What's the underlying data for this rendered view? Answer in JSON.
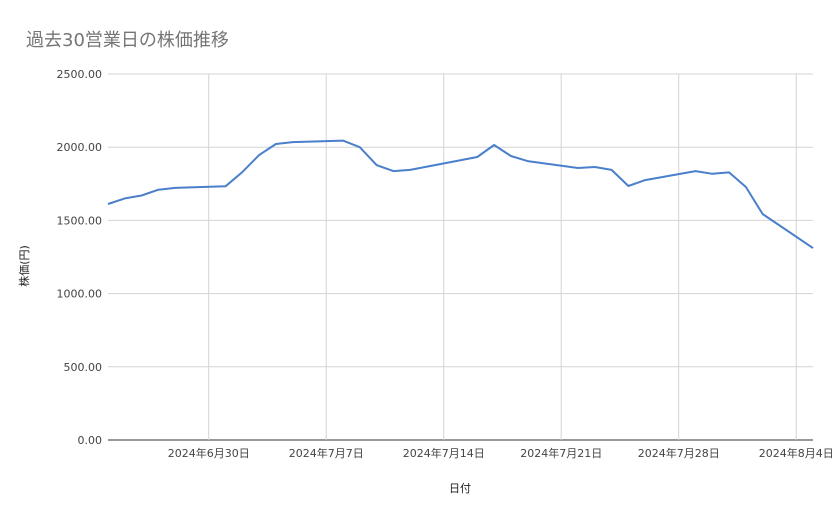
{
  "chart_data": {
    "type": "line",
    "title": "過去30営業日の株価推移",
    "xlabel": "日付",
    "ylabel": "株価(円)",
    "ylim": [
      0,
      2500
    ],
    "xlim": [
      "2024-06-24",
      "2024-08-05"
    ],
    "grid": true,
    "legend": "none",
    "y_ticks": [
      "0.00",
      "500.00",
      "1000.00",
      "1500.00",
      "2000.00",
      "2500.00"
    ],
    "x_ticks": [
      {
        "date": "2024-06-30",
        "label": "2024年6月30日"
      },
      {
        "date": "2024-07-07",
        "label": "2024年7月7日"
      },
      {
        "date": "2024-07-14",
        "label": "2024年7月14日"
      },
      {
        "date": "2024-07-21",
        "label": "2024年7月21日"
      },
      {
        "date": "2024-07-28",
        "label": "2024年7月28日"
      },
      {
        "date": "2024-08-04",
        "label": "2024年8月4日"
      }
    ],
    "series": [
      {
        "color": "#4a7fcb",
        "x": [
          "2024-06-24",
          "2024-06-25",
          "2024-06-26",
          "2024-06-27",
          "2024-06-28",
          "2024-07-01",
          "2024-07-02",
          "2024-07-03",
          "2024-07-04",
          "2024-07-05",
          "2024-07-08",
          "2024-07-09",
          "2024-07-10",
          "2024-07-11",
          "2024-07-12",
          "2024-07-16",
          "2024-07-17",
          "2024-07-18",
          "2024-07-19",
          "2024-07-22",
          "2024-07-23",
          "2024-07-24",
          "2024-07-25",
          "2024-07-26",
          "2024-07-29",
          "2024-07-30",
          "2024-07-31",
          "2024-08-01",
          "2024-08-02",
          "2024-08-05"
        ],
        "values": [
          1612,
          1650,
          1670,
          1710,
          1722,
          1733,
          1830,
          1946,
          2022,
          2035,
          2045,
          2000,
          1878,
          1837,
          1845,
          1933,
          2015,
          1940,
          1905,
          1858,
          1865,
          1845,
          1735,
          1775,
          1837,
          1818,
          1828,
          1728,
          1544,
          1311
        ]
      }
    ]
  }
}
